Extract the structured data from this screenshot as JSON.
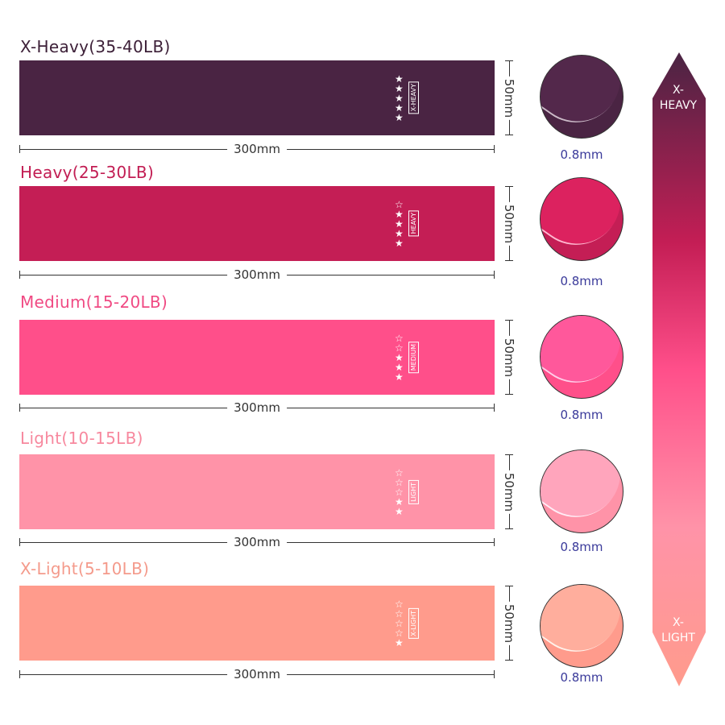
{
  "bands": [
    {
      "title": "X-Heavy(35-40LB)",
      "label": "X-HEAVY",
      "stars_filled": 5,
      "stars_total": 5,
      "length": "300mm",
      "width": "50mm",
      "thickness": "0.8mm",
      "color": "#4a2443",
      "title_color": "#3d2038"
    },
    {
      "title": "Heavy(25-30LB)",
      "label": "HEAVY",
      "stars_filled": 4,
      "stars_total": 5,
      "length": "300mm",
      "width": "50mm",
      "thickness": "0.8mm",
      "color": "#c41e55",
      "title_color": "#c21d53"
    },
    {
      "title": "Medium(15-20LB)",
      "label": "MEDIUM",
      "stars_filled": 3,
      "stars_total": 5,
      "length": "300mm",
      "width": "50mm",
      "thickness": "0.8mm",
      "color": "#ff4f8a",
      "title_color": "#f04a83"
    },
    {
      "title": "Light(10-15LB)",
      "label": "LIGHT",
      "stars_filled": 2,
      "stars_total": 5,
      "length": "300mm",
      "width": "50mm",
      "thickness": "0.8mm",
      "color": "#ff93a8",
      "title_color": "#f7889e"
    },
    {
      "title": "X-Light(5-10LB)",
      "label": "X-LIGHT",
      "stars_filled": 1,
      "stars_total": 5,
      "length": "300mm",
      "width": "50mm",
      "thickness": "0.8mm",
      "color": "#ff9b8c",
      "title_color": "#f49a8b"
    }
  ],
  "scale": {
    "top": "X-\nHEAVY",
    "top_line1": "X-",
    "top_line2": "HEAVY",
    "bottom_line1": "X-",
    "bottom_line2": "LIGHT"
  }
}
